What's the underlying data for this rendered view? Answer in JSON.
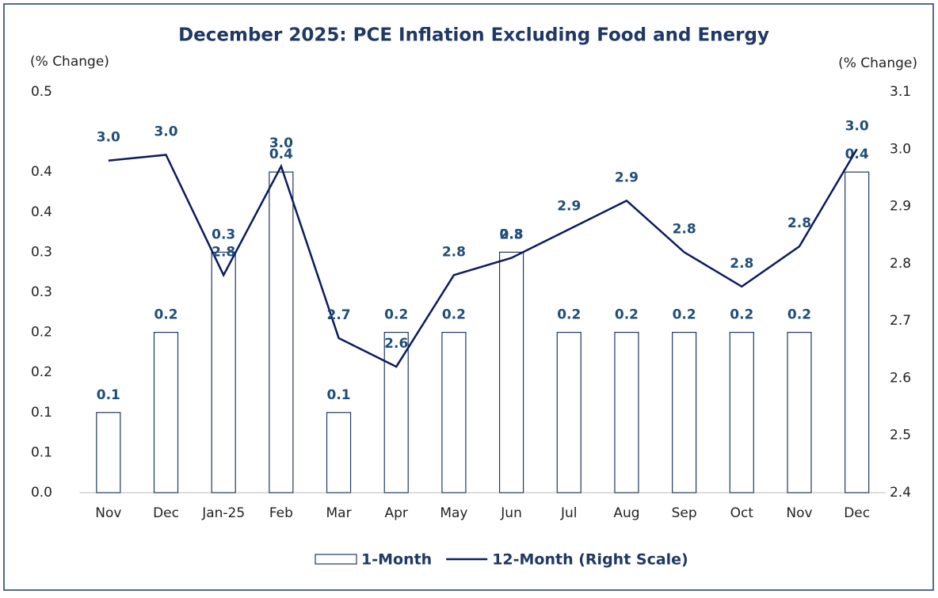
{
  "chart_data": {
    "type": "bar_line",
    "title": "December  2025: PCE Inflation Excluding Food and Energy",
    "ylabel": "(% Change)",
    "y2label": "(% Change)",
    "categories": [
      "Nov",
      "Dec",
      "Jan-25",
      "Feb",
      "Mar",
      "Apr",
      "May",
      "Jun",
      "Jul",
      "Aug",
      "Sep",
      "Oct",
      "Nov",
      "Dec"
    ],
    "series": [
      {
        "name": "1-Month",
        "type": "bar",
        "color": "#1f3864",
        "values": [
          0.1,
          0.2,
          0.3,
          0.4,
          0.1,
          0.2,
          0.2,
          0.3,
          0.2,
          0.2,
          0.2,
          0.2,
          0.2,
          0.4
        ]
      },
      {
        "name": "12-Month (Right Scale)",
        "type": "line",
        "axis": "y2",
        "color": "#0d1b5c",
        "values": [
          2.98,
          2.99,
          2.78,
          2.97,
          2.67,
          2.62,
          2.78,
          2.81,
          2.86,
          2.91,
          2.82,
          2.76,
          2.83,
          3.0
        ],
        "value_labels": [
          "3.0",
          "3.0",
          "2.8",
          "3.0",
          "2.7",
          "2.6",
          "2.8",
          "2.8",
          "2.9",
          "2.9",
          "2.8",
          "2.8",
          "2.8",
          "3.0"
        ]
      }
    ],
    "ylim": [
      0,
      0.5
    ],
    "yticks": [
      {
        "value": 0,
        "label": "0.0"
      },
      {
        "value": 0.05,
        "label": "0.1"
      },
      0.1,
      {
        "value": 0.15,
        "label": "0.2"
      },
      0.2,
      {
        "value": 0.25,
        "label": "0.3"
      },
      0.3,
      {
        "value": 0.35,
        "label": "0.4"
      },
      0.4,
      0.5
    ],
    "y2lim": [
      2.4,
      3.1
    ],
    "y2ticks": [
      2.4,
      2.5,
      2.6,
      2.7,
      2.8,
      2.9,
      {
        "value": 3,
        "label": "3.0"
      },
      3.1
    ],
    "legend": "bottom"
  }
}
